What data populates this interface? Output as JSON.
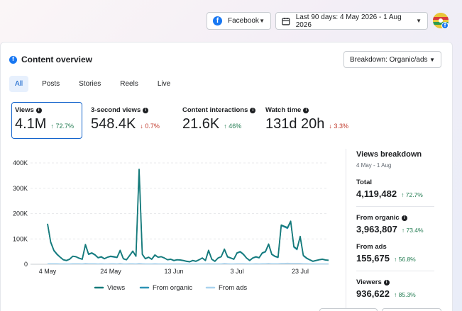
{
  "header": {
    "platform": {
      "label": "Facebook",
      "icon": "facebook-icon"
    },
    "date_range": {
      "label": "Last 90 days: 4 May 2026 - 1 Aug 2026",
      "icon": "calendar-icon"
    },
    "avatar_icon": "profile-avatar"
  },
  "card": {
    "title": "Content overview",
    "breakdown_select": "Breakdown: Organic/ads",
    "tabs": [
      "All",
      "Posts",
      "Stories",
      "Reels",
      "Live"
    ],
    "active_tab": "All"
  },
  "metrics": [
    {
      "label": "Views",
      "value": "4.1M",
      "change": "72.7%",
      "direction": "up"
    },
    {
      "label": "3-second views",
      "value": "548.4K",
      "change": "0.7%",
      "direction": "down"
    },
    {
      "label": "Content interactions",
      "value": "21.6K",
      "change": "46%",
      "direction": "up"
    },
    {
      "label": "Watch time",
      "value": "131d 20h",
      "change": "3.3%",
      "direction": "down"
    }
  ],
  "breakdown": {
    "title": "Views breakdown",
    "subtitle": "4 May - 1 Aug",
    "items": [
      {
        "label": "Total",
        "value": "4,119,482",
        "change": "72.7%",
        "info": false
      },
      {
        "label": "From organic",
        "value": "3,963,807",
        "change": "73.4%",
        "info": true
      },
      {
        "label": "From ads",
        "value": "155,675",
        "change": "56.8%",
        "info": false
      },
      {
        "label": "Viewers",
        "value": "936,622",
        "change": "85.3%",
        "info": true
      }
    ]
  },
  "colors": {
    "views": "#157a7a",
    "organic": "#2e93b5",
    "ads": "#a9d3ee",
    "up": "#1f7a4f",
    "down": "#c0392b",
    "accent": "#1464cc"
  },
  "chart_data": {
    "type": "line",
    "ylim": [
      0,
      400000
    ],
    "yticks": [
      "0",
      "100K",
      "200K",
      "300K",
      "400K"
    ],
    "xticks": [
      "4 May",
      "24 May",
      "13 Jun",
      "3 Jul",
      "23 Jul"
    ],
    "x_start": "2026-05-04",
    "x_end": "2026-08-01",
    "legend_position": "bottom",
    "series": [
      {
        "name": "Views",
        "values": [
          160000,
          88000,
          55000,
          40000,
          28000,
          18000,
          15000,
          20000,
          32000,
          30000,
          24000,
          20000,
          78000,
          40000,
          45000,
          38000,
          26000,
          30000,
          22000,
          28000,
          32000,
          30000,
          27000,
          55000,
          22000,
          18000,
          35000,
          52000,
          32000,
          375000,
          40000,
          22000,
          28000,
          20000,
          37000,
          28000,
          30000,
          25000,
          18000,
          20000,
          15000,
          18000,
          17000,
          15000,
          12000,
          10000,
          15000,
          12000,
          18000,
          25000,
          15000,
          55000,
          20000,
          12000,
          25000,
          30000,
          60000,
          30000,
          25000,
          20000,
          45000,
          50000,
          40000,
          25000,
          15000,
          25000,
          30000,
          26000,
          45000,
          50000,
          80000,
          40000,
          32000,
          28000,
          155000,
          150000,
          145000,
          170000,
          70000,
          60000,
          110000,
          35000,
          25000,
          18000,
          12000,
          15000,
          18000,
          20000,
          17000,
          16000
        ]
      },
      {
        "name": "From organic",
        "values": [
          158000,
          86000,
          53000,
          38000,
          27000,
          17000,
          14000,
          19000,
          31000,
          29000,
          23000,
          19000,
          75000,
          38000,
          43000,
          36000,
          25000,
          28000,
          21000,
          27000,
          30000,
          28000,
          26000,
          52000,
          21000,
          17000,
          33000,
          50000,
          31000,
          372000,
          38000,
          21000,
          27000,
          19000,
          35000,
          27000,
          29000,
          24000,
          17000,
          19000,
          14000,
          17000,
          16000,
          14000,
          11000,
          9000,
          14000,
          11000,
          17000,
          24000,
          14000,
          53000,
          19000,
          11000,
          24000,
          29000,
          57000,
          28000,
          24000,
          19000,
          43000,
          48000,
          38000,
          24000,
          14000,
          24000,
          28000,
          25000,
          43000,
          48000,
          77000,
          38000,
          30000,
          26000,
          152000,
          147000,
          141000,
          167000,
          67000,
          57000,
          107000,
          33000,
          23000,
          17000,
          11000,
          14000,
          17000,
          19000,
          16000,
          15000
        ]
      },
      {
        "name": "From ads",
        "values": [
          2000,
          2000,
          2000,
          2000,
          1500,
          1500,
          1500,
          1500,
          2000,
          2000,
          2000,
          1500,
          3000,
          2000,
          2000,
          2000,
          1500,
          2000,
          1500,
          1500,
          2000,
          2000,
          1500,
          3000,
          1500,
          1500,
          2000,
          2000,
          1500,
          3000,
          2000,
          1500,
          1500,
          1500,
          2000,
          1500,
          1500,
          1500,
          1500,
          1500,
          1500,
          1500,
          1500,
          1500,
          1500,
          1500,
          1500,
          1500,
          1500,
          1500,
          1500,
          2000,
          1500,
          1500,
          1500,
          1500,
          3000,
          2000,
          1500,
          1500,
          2000,
          2000,
          2000,
          1500,
          1500,
          1500,
          2000,
          1500,
          2000,
          2000,
          3000,
          2000,
          2000,
          2000,
          3000,
          3000,
          4000,
          3000,
          3000,
          3000,
          3000,
          2000,
          2000,
          1500,
          1500,
          1500,
          1500,
          1500,
          1500,
          1500
        ]
      }
    ]
  }
}
